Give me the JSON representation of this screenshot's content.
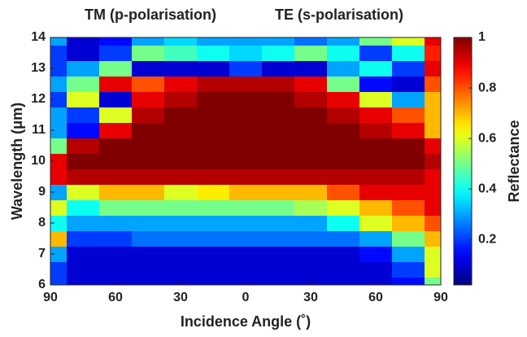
{
  "chart_data": {
    "type": "heatmap",
    "annotations": [
      "TM (p-polarisation)",
      "TE (s-polarisation)"
    ],
    "xlabel": "Incidence Angle (˚)",
    "ylabel": "Wavelength (μm)",
    "colorbar_label": "Reflectance",
    "colormap": "jet",
    "x": [
      -90,
      -75,
      -60,
      -45,
      -30,
      -15,
      0,
      15,
      30,
      45,
      60,
      75,
      90
    ],
    "y": [
      6,
      6.5,
      7,
      7.5,
      8,
      8.5,
      9,
      9.5,
      10,
      10.5,
      11,
      11.5,
      12,
      12.5,
      13,
      13.5,
      14
    ],
    "values": [
      [
        0.2,
        0.1,
        0.1,
        0.1,
        0.1,
        0.1,
        0.1,
        0.1,
        0.1,
        0.1,
        0.1,
        0.15,
        0.5
      ],
      [
        0.2,
        0.1,
        0.1,
        0.1,
        0.1,
        0.1,
        0.1,
        0.1,
        0.1,
        0.1,
        0.1,
        0.2,
        0.6
      ],
      [
        0.3,
        0.1,
        0.1,
        0.1,
        0.1,
        0.1,
        0.1,
        0.1,
        0.1,
        0.1,
        0.15,
        0.3,
        0.6
      ],
      [
        0.7,
        0.2,
        0.2,
        0.25,
        0.25,
        0.25,
        0.25,
        0.25,
        0.25,
        0.25,
        0.3,
        0.5,
        0.7
      ],
      [
        0.4,
        0.3,
        0.3,
        0.3,
        0.3,
        0.3,
        0.3,
        0.3,
        0.3,
        0.4,
        0.6,
        0.7,
        0.8
      ],
      [
        0.6,
        0.4,
        0.5,
        0.5,
        0.5,
        0.5,
        0.5,
        0.5,
        0.55,
        0.6,
        0.7,
        0.8,
        0.9
      ],
      [
        0.3,
        0.6,
        0.7,
        0.7,
        0.6,
        0.65,
        0.7,
        0.7,
        0.7,
        0.8,
        0.9,
        0.9,
        0.9
      ],
      [
        0.9,
        0.95,
        0.95,
        0.95,
        0.95,
        0.95,
        0.95,
        0.95,
        0.95,
        0.95,
        0.95,
        0.95,
        0.9
      ],
      [
        0.9,
        1,
        1,
        1,
        1,
        1,
        1,
        1,
        1,
        1,
        1,
        1,
        0.95
      ],
      [
        0.5,
        0.95,
        1,
        1,
        1,
        1,
        1,
        1,
        1,
        1,
        1,
        1,
        0.9
      ],
      [
        0.3,
        0.15,
        0.9,
        1,
        1,
        1,
        1,
        1,
        1,
        1,
        0.95,
        0.9,
        0.7
      ],
      [
        0.3,
        0.2,
        0.6,
        0.95,
        1,
        1,
        1,
        1,
        1,
        0.95,
        0.9,
        0.8,
        0.7
      ],
      [
        0.2,
        0.6,
        0.1,
        0.9,
        0.95,
        1,
        1,
        1,
        0.95,
        0.9,
        0.6,
        0.3,
        0.7
      ],
      [
        0.3,
        0.5,
        0.9,
        0.8,
        0.9,
        0.95,
        0.95,
        0.95,
        0.9,
        0.5,
        0.15,
        0.1,
        0.8
      ],
      [
        0.2,
        0.3,
        0.5,
        0.1,
        0.1,
        0.1,
        0.2,
        0.1,
        0.1,
        0.3,
        0.4,
        0.2,
        0.9
      ],
      [
        0.2,
        0.1,
        0.2,
        0.5,
        0.45,
        0.4,
        0.35,
        0.4,
        0.5,
        0.4,
        0.2,
        0.4,
        0.85
      ],
      [
        0.3,
        0.1,
        0.15,
        0.3,
        0.35,
        0.3,
        0.3,
        0.3,
        0.25,
        0.3,
        0.5,
        0.6,
        0.9
      ]
    ],
    "xlim": [
      -90,
      90
    ],
    "xticks": [
      {
        "value": -90,
        "label": "90"
      },
      {
        "value": -60,
        "label": "60"
      },
      {
        "value": -30,
        "label": "30"
      },
      0,
      30,
      60,
      90
    ],
    "ylim": [
      6,
      14
    ],
    "yticks": [
      6,
      7,
      8,
      9,
      10,
      11,
      12,
      13,
      14
    ],
    "zlim": [
      0.02,
      1
    ],
    "zticks": [
      0.2,
      0.4,
      0.6,
      0.8,
      1
    ]
  }
}
